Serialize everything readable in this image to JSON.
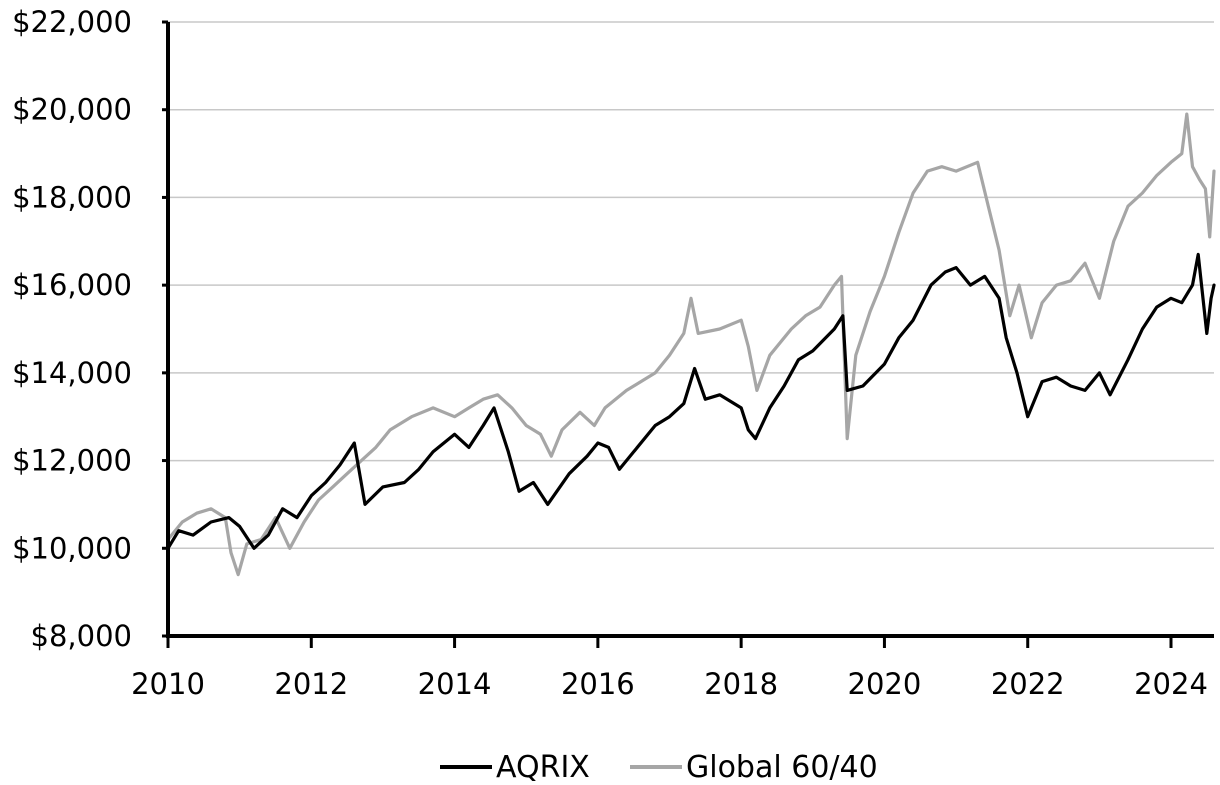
{
  "chart_data": {
    "type": "line",
    "title": "",
    "xlabel": "",
    "ylabel": "",
    "xlim": [
      2010,
      2024.6
    ],
    "ylim": [
      8000,
      22000
    ],
    "grid": true,
    "legend_position": "bottom",
    "x_ticks": [
      {
        "value": 2010,
        "label": "2010"
      },
      {
        "value": 2012,
        "label": "2012"
      },
      {
        "value": 2014,
        "label": "2014"
      },
      {
        "value": 2016,
        "label": "2016"
      },
      {
        "value": 2018,
        "label": "2018"
      },
      {
        "value": 2020,
        "label": "2020"
      },
      {
        "value": 2022,
        "label": "2022"
      },
      {
        "value": 2024,
        "label": "2024"
      }
    ],
    "y_ticks": [
      {
        "value": 8000,
        "label": "$8,000"
      },
      {
        "value": 10000,
        "label": "$10,000"
      },
      {
        "value": 12000,
        "label": "$12,000"
      },
      {
        "value": 14000,
        "label": "$14,000"
      },
      {
        "value": 16000,
        "label": "$16,000"
      },
      {
        "value": 18000,
        "label": "$18,000"
      },
      {
        "value": 20000,
        "label": "$20,000"
      },
      {
        "value": 22000,
        "label": "$22,000"
      }
    ],
    "series": [
      {
        "name": "AQRIX",
        "color": "#000000",
        "points": [
          [
            2010.0,
            10000
          ],
          [
            2010.15,
            10400
          ],
          [
            2010.35,
            10300
          ],
          [
            2010.6,
            10600
          ],
          [
            2010.85,
            10700
          ],
          [
            2011.0,
            10500
          ],
          [
            2011.2,
            10000
          ],
          [
            2011.4,
            10300
          ],
          [
            2011.6,
            10900
          ],
          [
            2011.8,
            10700
          ],
          [
            2012.0,
            11200
          ],
          [
            2012.2,
            11500
          ],
          [
            2012.4,
            11900
          ],
          [
            2012.6,
            12400
          ],
          [
            2012.75,
            11000
          ],
          [
            2013.0,
            11400
          ],
          [
            2013.3,
            11500
          ],
          [
            2013.5,
            11800
          ],
          [
            2013.7,
            12200
          ],
          [
            2014.0,
            12600
          ],
          [
            2014.2,
            12300
          ],
          [
            2014.4,
            12800
          ],
          [
            2014.55,
            13200
          ],
          [
            2014.75,
            12200
          ],
          [
            2014.9,
            11300
          ],
          [
            2015.1,
            11500
          ],
          [
            2015.3,
            11000
          ],
          [
            2015.6,
            11700
          ],
          [
            2015.85,
            12100
          ],
          [
            2016.0,
            12400
          ],
          [
            2016.15,
            12300
          ],
          [
            2016.3,
            11800
          ],
          [
            2016.5,
            12200
          ],
          [
            2016.8,
            12800
          ],
          [
            2017.0,
            13000
          ],
          [
            2017.2,
            13300
          ],
          [
            2017.35,
            14100
          ],
          [
            2017.5,
            13400
          ],
          [
            2017.7,
            13500
          ],
          [
            2018.0,
            13200
          ],
          [
            2018.1,
            12700
          ],
          [
            2018.2,
            12500
          ],
          [
            2018.4,
            13200
          ],
          [
            2018.6,
            13700
          ],
          [
            2018.8,
            14300
          ],
          [
            2019.0,
            14500
          ],
          [
            2019.3,
            15000
          ],
          [
            2019.42,
            15300
          ],
          [
            2019.48,
            13600
          ],
          [
            2019.7,
            13700
          ],
          [
            2020.0,
            14200
          ],
          [
            2020.2,
            14800
          ],
          [
            2020.4,
            15200
          ],
          [
            2020.65,
            16000
          ],
          [
            2020.85,
            16300
          ],
          [
            2021.0,
            16400
          ],
          [
            2021.2,
            16000
          ],
          [
            2021.4,
            16200
          ],
          [
            2021.6,
            15700
          ],
          [
            2021.7,
            14800
          ],
          [
            2021.85,
            14000
          ],
          [
            2022.0,
            13000
          ],
          [
            2022.2,
            13800
          ],
          [
            2022.4,
            13900
          ],
          [
            2022.6,
            13700
          ],
          [
            2022.8,
            13600
          ],
          [
            2023.0,
            14000
          ],
          [
            2023.15,
            13500
          ],
          [
            2023.4,
            14300
          ],
          [
            2023.6,
            15000
          ],
          [
            2023.8,
            15500
          ],
          [
            2024.0,
            15700
          ],
          [
            2024.15,
            15600
          ],
          [
            2024.3,
            16000
          ],
          [
            2024.38,
            16700
          ],
          [
            2024.44,
            15800
          ],
          [
            2024.5,
            14900
          ],
          [
            2024.56,
            15700
          ],
          [
            2024.6,
            16000
          ]
        ]
      },
      {
        "name": "Global 60/40",
        "color": "#a6a6a6",
        "points": [
          [
            2010.0,
            10200
          ],
          [
            2010.2,
            10600
          ],
          [
            2010.4,
            10800
          ],
          [
            2010.6,
            10900
          ],
          [
            2010.8,
            10700
          ],
          [
            2010.88,
            9900
          ],
          [
            2010.98,
            9400
          ],
          [
            2011.1,
            10100
          ],
          [
            2011.3,
            10200
          ],
          [
            2011.5,
            10700
          ],
          [
            2011.7,
            10000
          ],
          [
            2011.9,
            10600
          ],
          [
            2012.1,
            11100
          ],
          [
            2012.3,
            11400
          ],
          [
            2012.5,
            11700
          ],
          [
            2012.7,
            12000
          ],
          [
            2012.9,
            12300
          ],
          [
            2013.1,
            12700
          ],
          [
            2013.4,
            13000
          ],
          [
            2013.7,
            13200
          ],
          [
            2014.0,
            13000
          ],
          [
            2014.2,
            13200
          ],
          [
            2014.4,
            13400
          ],
          [
            2014.6,
            13500
          ],
          [
            2014.8,
            13200
          ],
          [
            2015.0,
            12800
          ],
          [
            2015.2,
            12600
          ],
          [
            2015.35,
            12100
          ],
          [
            2015.5,
            12700
          ],
          [
            2015.75,
            13100
          ],
          [
            2015.95,
            12800
          ],
          [
            2016.1,
            13200
          ],
          [
            2016.4,
            13600
          ],
          [
            2016.8,
            14000
          ],
          [
            2017.0,
            14400
          ],
          [
            2017.2,
            14900
          ],
          [
            2017.3,
            15700
          ],
          [
            2017.4,
            14900
          ],
          [
            2017.7,
            15000
          ],
          [
            2018.0,
            15200
          ],
          [
            2018.1,
            14600
          ],
          [
            2018.22,
            13600
          ],
          [
            2018.4,
            14400
          ],
          [
            2018.7,
            15000
          ],
          [
            2018.9,
            15300
          ],
          [
            2019.1,
            15500
          ],
          [
            2019.3,
            16000
          ],
          [
            2019.4,
            16200
          ],
          [
            2019.48,
            12500
          ],
          [
            2019.6,
            14400
          ],
          [
            2019.8,
            15400
          ],
          [
            2020.0,
            16200
          ],
          [
            2020.2,
            17200
          ],
          [
            2020.4,
            18100
          ],
          [
            2020.6,
            18600
          ],
          [
            2020.8,
            18700
          ],
          [
            2021.0,
            18600
          ],
          [
            2021.3,
            18800
          ],
          [
            2021.45,
            17800
          ],
          [
            2021.6,
            16800
          ],
          [
            2021.75,
            15300
          ],
          [
            2021.88,
            16000
          ],
          [
            2022.05,
            14800
          ],
          [
            2022.2,
            15600
          ],
          [
            2022.4,
            16000
          ],
          [
            2022.6,
            16100
          ],
          [
            2022.8,
            16500
          ],
          [
            2023.0,
            15700
          ],
          [
            2023.2,
            17000
          ],
          [
            2023.4,
            17800
          ],
          [
            2023.6,
            18100
          ],
          [
            2023.8,
            18500
          ],
          [
            2024.0,
            18800
          ],
          [
            2024.15,
            19000
          ],
          [
            2024.22,
            19900
          ],
          [
            2024.3,
            18700
          ],
          [
            2024.4,
            18400
          ],
          [
            2024.48,
            18200
          ],
          [
            2024.54,
            17100
          ],
          [
            2024.6,
            18600
          ]
        ]
      }
    ]
  }
}
